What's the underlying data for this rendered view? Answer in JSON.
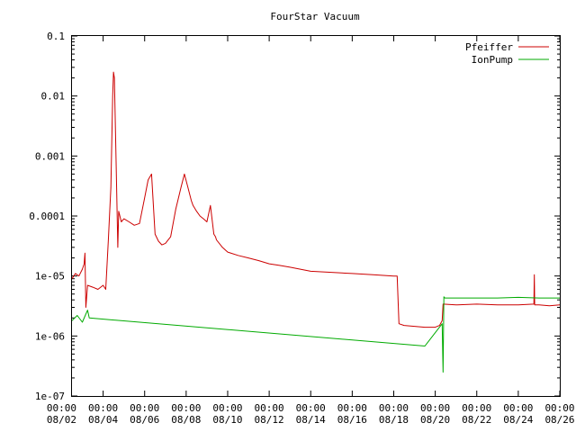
{
  "chart_data": {
    "type": "line",
    "title": "FourStar Vacuum",
    "xlabel": "",
    "ylabel": "",
    "y_scale": "log",
    "ylim": [
      1e-07,
      0.1
    ],
    "xlim": [
      "08/02 12:00",
      "08/26 00:00"
    ],
    "grid": false,
    "legend_position": "top-right",
    "y_ticks": [
      "1e-07",
      "1e-06",
      "1e-05",
      "0.0001",
      "0.001",
      "0.01",
      "0.1"
    ],
    "x_ticks": [
      {
        "time": "00:00",
        "date": "08/02"
      },
      {
        "time": "00:00",
        "date": "08/04"
      },
      {
        "time": "00:00",
        "date": "08/06"
      },
      {
        "time": "00:00",
        "date": "08/08"
      },
      {
        "time": "00:00",
        "date": "08/10"
      },
      {
        "time": "00:00",
        "date": "08/12"
      },
      {
        "time": "00:00",
        "date": "08/14"
      },
      {
        "time": "00:00",
        "date": "08/16"
      },
      {
        "time": "00:00",
        "date": "08/18"
      },
      {
        "time": "00:00",
        "date": "08/20"
      },
      {
        "time": "00:00",
        "date": "08/22"
      },
      {
        "time": "00:00",
        "date": "08/24"
      },
      {
        "time": "00:00",
        "date": "08/26"
      }
    ],
    "series": [
      {
        "name": "Pfeiffer",
        "color": "#cc0000",
        "x": [
          "08/02 12:00",
          "08/02 16:00",
          "08/02 20:00",
          "08/03 00:00",
          "08/03 02:00",
          "08/03 03:00",
          "08/03 04:00",
          "08/03 06:00",
          "08/03 12:00",
          "08/03 18:00",
          "08/04 00:00",
          "08/04 03:00",
          "08/04 06:00",
          "08/04 09:00",
          "08/04 11:00",
          "08/04 12:00",
          "08/04 13:00",
          "08/04 15:00",
          "08/04 17:00",
          "08/04 18:00",
          "08/04 21:00",
          "08/05 00:00",
          "08/05 06:00",
          "08/05 12:00",
          "08/05 18:00",
          "08/06 00:00",
          "08/06 04:00",
          "08/06 08:00",
          "08/06 12:00",
          "08/06 16:00",
          "08/06 20:00",
          "08/07 00:00",
          "08/07 06:00",
          "08/07 12:00",
          "08/07 18:00",
          "08/07 22:00",
          "08/08 02:00",
          "08/08 06:00",
          "08/08 08:00",
          "08/08 12:00",
          "08/08 16:00",
          "08/08 20:00",
          "08/09 00:00",
          "08/09 04:00",
          "08/09 08:00",
          "08/09 10:00",
          "08/09 11:00",
          "08/09 18:00",
          "08/10 00:00",
          "08/10 12:00",
          "08/11 00:00",
          "08/11 12:00",
          "08/12 00:00",
          "08/12 12:00",
          "08/13 00:00",
          "08/13 12:00",
          "08/14 00:00",
          "08/15 00:00",
          "08/16 00:00",
          "08/17 00:00",
          "08/18 00:00",
          "08/18 04:00",
          "08/18 06:00",
          "08/18 12:00",
          "08/19 00:00",
          "08/19 12:00",
          "08/20 00:00",
          "08/20 05:00",
          "08/20 08:00",
          "08/20 09:00",
          "08/21 00:00",
          "08/22 00:00",
          "08/23 00:00",
          "08/24 00:00",
          "08/24 18:00",
          "08/24 18:30",
          "08/24 19:00",
          "08/25 00:00",
          "08/25 12:00",
          "08/26 00:00"
        ],
        "y": [
          9e-06,
          1.1e-05,
          1e-05,
          1.3e-05,
          1.6e-05,
          2.4e-05,
          3e-06,
          7e-06,
          6.5e-06,
          6e-06,
          7e-06,
          6e-06,
          4e-05,
          0.0003,
          0.01,
          0.025,
          0.02,
          0.0008,
          3e-05,
          0.00012,
          8e-05,
          9e-05,
          8e-05,
          7e-05,
          7.5e-05,
          0.0002,
          0.0004,
          0.0005,
          5e-05,
          3.8e-05,
          3.3e-05,
          3.5e-05,
          4.5e-05,
          0.00013,
          0.0003,
          0.0005,
          0.0003,
          0.00018,
          0.00015,
          0.00012,
          0.0001,
          9e-05,
          8e-05,
          0.00015,
          5e-05,
          4.5e-05,
          4e-05,
          3e-05,
          2.5e-05,
          2.2e-05,
          2e-05,
          1.8e-05,
          1.6e-05,
          1.5e-05,
          1.4e-05,
          1.3e-05,
          1.2e-05,
          1.15e-05,
          1.1e-05,
          1.05e-05,
          1e-05,
          1e-05,
          1.6e-06,
          1.5e-06,
          1.45e-06,
          1.4e-06,
          1.4e-06,
          1.5e-06,
          1.8e-06,
          3.4e-06,
          3.3e-06,
          3.4e-06,
          3.3e-06,
          3.3e-06,
          3.4e-06,
          1.05e-05,
          3.3e-06,
          3.3e-06,
          3.2e-06,
          3.3e-06
        ]
      },
      {
        "name": "IonPump",
        "color": "#00aa00",
        "x": [
          "08/02 12:00",
          "08/02 18:00",
          "08/03 00:00",
          "08/03 06:00",
          "08/03 08:00",
          "08/19 12:00",
          "08/20 08:00",
          "08/20 09:00",
          "08/20 10:00",
          "08/20 11:00",
          "08/21 00:00",
          "08/22 00:00",
          "08/23 00:00",
          "08/24 00:00",
          "08/25 00:00",
          "08/26 00:00"
        ],
        "y": [
          1.8e-06,
          2.2e-06,
          1.7e-06,
          2.7e-06,
          2e-06,
          6.8e-07,
          1.6e-06,
          2.5e-07,
          4.5e-06,
          4.3e-06,
          4.3e-06,
          4.3e-06,
          4.3e-06,
          4.4e-06,
          4.3e-06,
          4.3e-06
        ]
      }
    ]
  }
}
